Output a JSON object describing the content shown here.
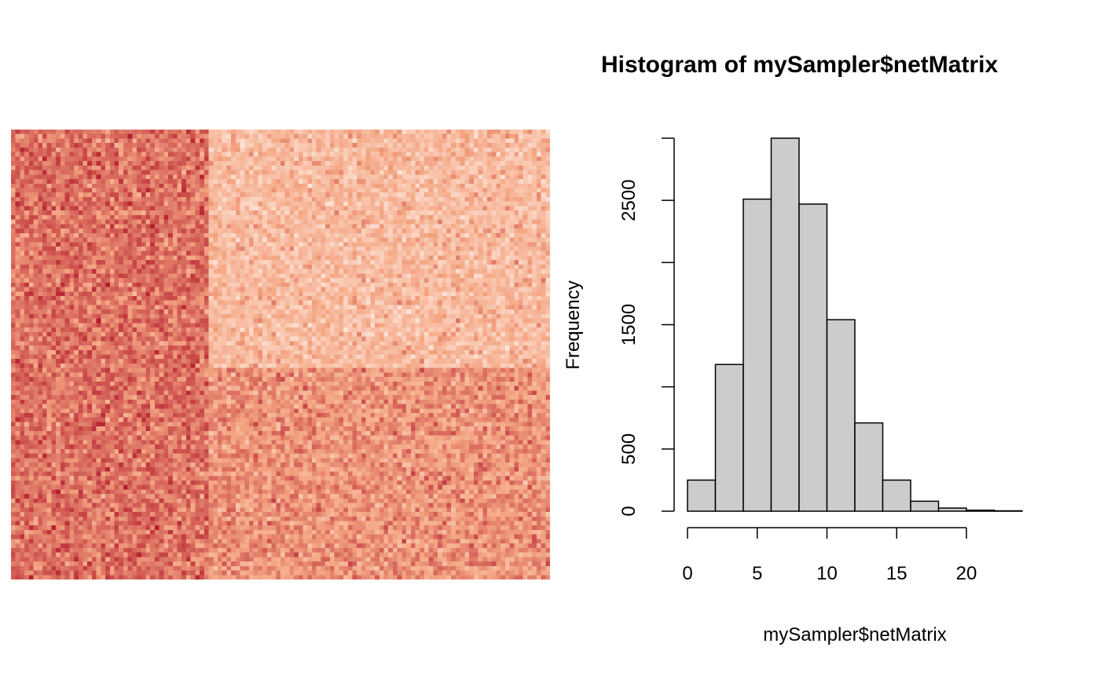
{
  "chart_data": [
    {
      "type": "heatmap",
      "title": "",
      "rows": 100,
      "cols": 120,
      "blocks": [
        {
          "cols": [
            0,
            44
          ],
          "rows": [
            0,
            100
          ],
          "intensity": "high"
        },
        {
          "cols": [
            44,
            120
          ],
          "rows": [
            0,
            53
          ],
          "intensity": "low"
        },
        {
          "cols": [
            44,
            120
          ],
          "rows": [
            53,
            100
          ],
          "intensity": "medium"
        }
      ],
      "colors": {
        "low": "#fff0e8",
        "mid": "#f4a582",
        "high": "#b2182b"
      }
    },
    {
      "type": "bar",
      "title": "Histogram of mySampler$netMatrix",
      "xlabel": "mySampler$netMatrix",
      "ylabel": "Frequency",
      "bin_edges": [
        0,
        2,
        4,
        6,
        8,
        10,
        12,
        14,
        16,
        18,
        20,
        22,
        24
      ],
      "values": [
        250,
        1180,
        2510,
        3000,
        2470,
        1540,
        710,
        250,
        80,
        25,
        8,
        3
      ],
      "xlim": [
        0,
        24
      ],
      "ylim": [
        0,
        3000
      ],
      "x_ticks": [
        "0",
        "5",
        "10",
        "15",
        "20"
      ],
      "y_ticks": [
        "0",
        "500",
        "1500",
        "2500"
      ],
      "bar_color": "#cccccc",
      "edge_color": "#000000"
    }
  ]
}
